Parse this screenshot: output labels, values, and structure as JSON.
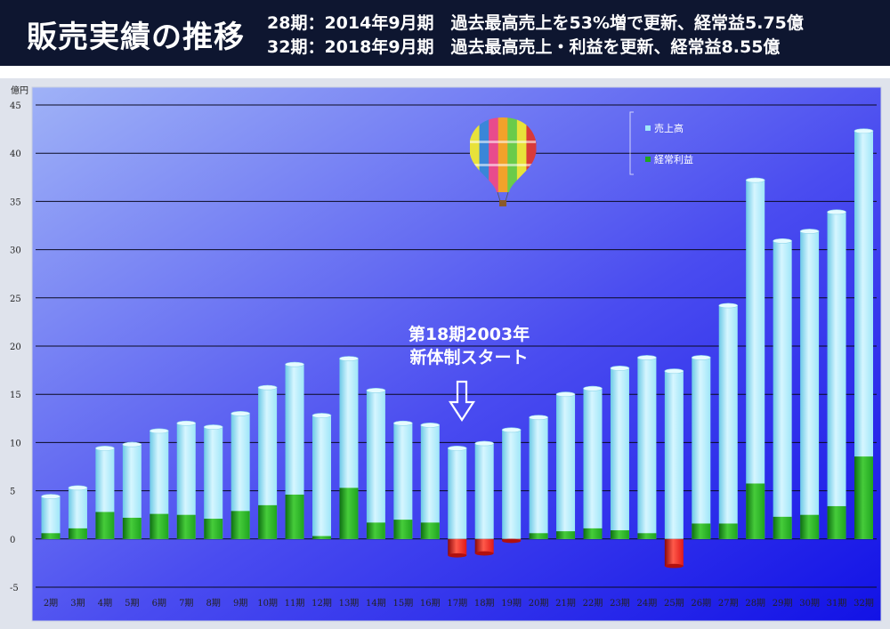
{
  "title": "販売実績の推移",
  "headlines": [
    "28期：2014年9月期　過去最高売上を53%増で更新、経常益5.75億",
    "32期：2018年9月期　過去最高売上・利益を更新、経常益8.55億"
  ],
  "colors": {
    "header_bg": "#0e1630",
    "plot_bg_top": "#9fb2f7",
    "plot_bg_bottom": "#1212e6",
    "sales": "#9fe6f8",
    "profit_positive": "#1fa51f",
    "profit_negative": "#e01818"
  },
  "chart_data": {
    "type": "bar",
    "unit_label": "億円",
    "ylim": [
      -5,
      45
    ],
    "yticks": [
      "-5",
      "0",
      "5",
      "10",
      "15",
      "20",
      "25",
      "30",
      "35",
      "40",
      "45"
    ],
    "grid": true,
    "legend_position": "top-right",
    "categories": [
      "2期",
      "3期",
      "4期",
      "5期",
      "6期",
      "7期",
      "8期",
      "9期",
      "10期",
      "11期",
      "12期",
      "13期",
      "14期",
      "15期",
      "16期",
      "17期",
      "18期",
      "19期",
      "20期",
      "21期",
      "22期",
      "23期",
      "24期",
      "25期",
      "26期",
      "27期",
      "28期",
      "29期",
      "30期",
      "31期",
      "32期"
    ],
    "series": [
      {
        "name": "売上高",
        "values": [
          4.4,
          5.3,
          9.4,
          9.8,
          11.2,
          12.0,
          11.6,
          13.0,
          15.7,
          18.1,
          12.8,
          18.7,
          15.4,
          12.0,
          11.8,
          9.4,
          9.9,
          11.3,
          12.6,
          15.0,
          15.6,
          17.7,
          18.8,
          17.4,
          18.8,
          24.2,
          37.2,
          30.9,
          31.9,
          33.9,
          42.3
        ]
      },
      {
        "name": "経常利益",
        "values": [
          0.6,
          1.1,
          2.8,
          2.2,
          2.6,
          2.5,
          2.1,
          2.9,
          3.5,
          4.6,
          0.3,
          5.3,
          1.7,
          2.0,
          1.7,
          -1.7,
          -1.5,
          -0.2,
          0.6,
          0.8,
          1.1,
          0.9,
          0.6,
          -2.8,
          1.6,
          1.6,
          5.75,
          2.3,
          2.5,
          3.4,
          8.55
        ]
      }
    ],
    "annotation": [
      "第18期2003年",
      "新体制スタート"
    ]
  }
}
